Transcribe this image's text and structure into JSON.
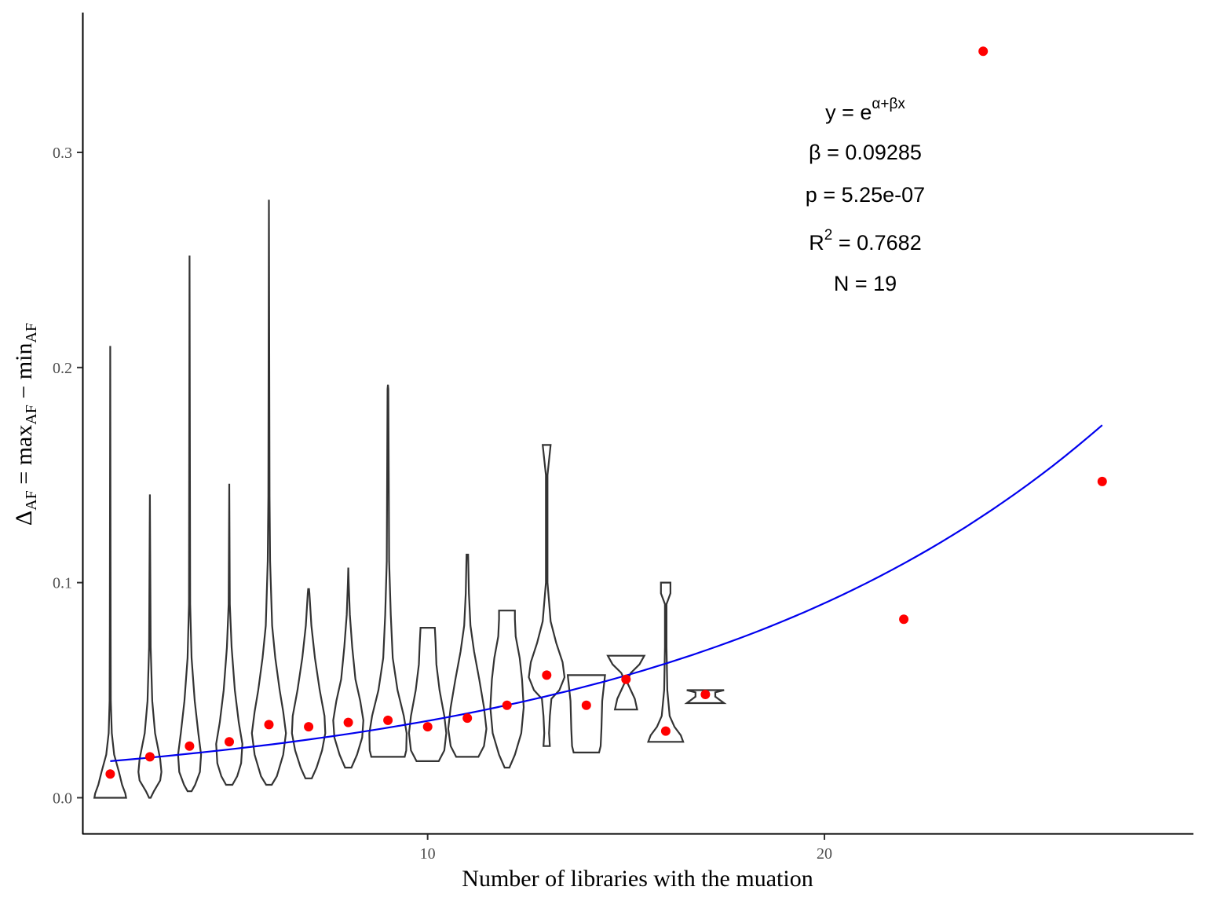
{
  "chart_data": {
    "type": "scatter",
    "xlabel": "Number of libraries with the muation",
    "ylabel": {
      "delta": "Δ",
      "sub1": "AF",
      "eq": " = max",
      "sub2": "AF",
      "minus": " − min",
      "sub3": "AF"
    },
    "xlim": [
      1.3,
      29.3
    ],
    "ylim": [
      -0.017,
      0.365
    ],
    "x_ticks": [
      {
        "value": 10,
        "label": "10"
      },
      {
        "value": 20,
        "label": "20"
      }
    ],
    "y_ticks": [
      {
        "value": 0.0,
        "label": "0.0"
      },
      {
        "value": 0.1,
        "label": "0.1"
      },
      {
        "value": 0.2,
        "label": "0.2"
      },
      {
        "value": 0.3,
        "label": "0.3"
      }
    ],
    "grid": false,
    "legend": "none",
    "colors": {
      "points": "#ff0000",
      "fit_line": "#0000ee",
      "violin": "#333333",
      "axis": "#000000"
    },
    "series": [
      {
        "kind": "points",
        "x": [
          2,
          3,
          4,
          5,
          6,
          7,
          8,
          9,
          10,
          11,
          12,
          13,
          14,
          15,
          16,
          17,
          22,
          24,
          27
        ],
        "y": [
          0.011,
          0.019,
          0.024,
          0.026,
          0.034,
          0.033,
          0.035,
          0.036,
          0.033,
          0.037,
          0.043,
          0.057,
          0.043,
          0.055,
          0.031,
          0.048,
          0.083,
          0.347,
          0.147
        ]
      },
      {
        "kind": "fit",
        "formula": "exp(alpha + beta*x)",
        "x_range": [
          2,
          27
        ],
        "y_at_start": 0.017,
        "beta": 0.09285
      }
    ],
    "violins": [
      {
        "x": 2,
        "profile": [
          [
            0.0,
            0.4
          ],
          [
            0.002,
            0.38
          ],
          [
            0.006,
            0.3
          ],
          [
            0.012,
            0.22
          ],
          [
            0.02,
            0.1
          ],
          [
            0.03,
            0.04
          ],
          [
            0.045,
            0.015
          ],
          [
            0.08,
            0.01
          ],
          [
            0.21,
            0.0
          ]
        ]
      },
      {
        "x": 3,
        "profile": [
          [
            0.0,
            0.02
          ],
          [
            0.003,
            0.1
          ],
          [
            0.008,
            0.26
          ],
          [
            0.012,
            0.29
          ],
          [
            0.018,
            0.26
          ],
          [
            0.03,
            0.13
          ],
          [
            0.045,
            0.06
          ],
          [
            0.07,
            0.02
          ],
          [
            0.141,
            0.0
          ]
        ]
      },
      {
        "x": 4,
        "profile": [
          [
            0.003,
            0.05
          ],
          [
            0.006,
            0.14
          ],
          [
            0.012,
            0.26
          ],
          [
            0.02,
            0.29
          ],
          [
            0.03,
            0.22
          ],
          [
            0.045,
            0.13
          ],
          [
            0.065,
            0.05
          ],
          [
            0.09,
            0.015
          ],
          [
            0.252,
            0.0
          ]
        ]
      },
      {
        "x": 5,
        "profile": [
          [
            0.006,
            0.08
          ],
          [
            0.01,
            0.2
          ],
          [
            0.016,
            0.3
          ],
          [
            0.025,
            0.33
          ],
          [
            0.035,
            0.24
          ],
          [
            0.05,
            0.14
          ],
          [
            0.07,
            0.06
          ],
          [
            0.09,
            0.015
          ],
          [
            0.146,
            0.0
          ]
        ]
      },
      {
        "x": 6,
        "profile": [
          [
            0.006,
            0.07
          ],
          [
            0.01,
            0.2
          ],
          [
            0.02,
            0.36
          ],
          [
            0.03,
            0.43
          ],
          [
            0.04,
            0.36
          ],
          [
            0.05,
            0.27
          ],
          [
            0.065,
            0.16
          ],
          [
            0.08,
            0.08
          ],
          [
            0.11,
            0.03
          ],
          [
            0.14,
            0.015
          ],
          [
            0.278,
            0.0
          ]
        ]
      },
      {
        "x": 7,
        "profile": [
          [
            0.009,
            0.08
          ],
          [
            0.014,
            0.2
          ],
          [
            0.022,
            0.34
          ],
          [
            0.03,
            0.42
          ],
          [
            0.038,
            0.4
          ],
          [
            0.05,
            0.28
          ],
          [
            0.065,
            0.16
          ],
          [
            0.08,
            0.07
          ],
          [
            0.095,
            0.02
          ],
          [
            0.097,
            0.01
          ]
        ]
      },
      {
        "x": 8,
        "profile": [
          [
            0.014,
            0.08
          ],
          [
            0.02,
            0.22
          ],
          [
            0.028,
            0.35
          ],
          [
            0.036,
            0.38
          ],
          [
            0.045,
            0.3
          ],
          [
            0.055,
            0.18
          ],
          [
            0.07,
            0.1
          ],
          [
            0.085,
            0.04
          ],
          [
            0.1,
            0.01
          ],
          [
            0.107,
            0.0
          ]
        ]
      },
      {
        "x": 9,
        "profile": [
          [
            0.019,
            0.42
          ],
          [
            0.022,
            0.46
          ],
          [
            0.03,
            0.47
          ],
          [
            0.038,
            0.4
          ],
          [
            0.05,
            0.24
          ],
          [
            0.065,
            0.12
          ],
          [
            0.085,
            0.07
          ],
          [
            0.11,
            0.03
          ],
          [
            0.15,
            0.02
          ],
          [
            0.19,
            0.01
          ],
          [
            0.192,
            0.0
          ]
        ]
      },
      {
        "x": 10,
        "profile": [
          [
            0.017,
            0.28
          ],
          [
            0.022,
            0.42
          ],
          [
            0.03,
            0.47
          ],
          [
            0.038,
            0.42
          ],
          [
            0.05,
            0.3
          ],
          [
            0.062,
            0.22
          ],
          [
            0.072,
            0.2
          ],
          [
            0.079,
            0.18
          ]
        ]
      },
      {
        "x": 11,
        "profile": [
          [
            0.019,
            0.28
          ],
          [
            0.024,
            0.42
          ],
          [
            0.032,
            0.48
          ],
          [
            0.042,
            0.42
          ],
          [
            0.055,
            0.3
          ],
          [
            0.068,
            0.17
          ],
          [
            0.08,
            0.08
          ],
          [
            0.095,
            0.04
          ],
          [
            0.113,
            0.02
          ]
        ]
      },
      {
        "x": 12,
        "profile": [
          [
            0.014,
            0.06
          ],
          [
            0.02,
            0.2
          ],
          [
            0.03,
            0.36
          ],
          [
            0.042,
            0.42
          ],
          [
            0.055,
            0.38
          ],
          [
            0.065,
            0.32
          ],
          [
            0.075,
            0.22
          ],
          [
            0.083,
            0.2
          ],
          [
            0.087,
            0.2
          ]
        ]
      },
      {
        "x": 13,
        "profile": [
          [
            0.024,
            0.08
          ],
          [
            0.03,
            0.06
          ],
          [
            0.038,
            0.08
          ],
          [
            0.046,
            0.12
          ],
          [
            0.05,
            0.32
          ],
          [
            0.056,
            0.45
          ],
          [
            0.063,
            0.4
          ],
          [
            0.072,
            0.24
          ],
          [
            0.082,
            0.1
          ],
          [
            0.1,
            0.02
          ],
          [
            0.15,
            0.02
          ],
          [
            0.164,
            0.1
          ]
        ]
      },
      {
        "x": 14,
        "profile": [
          [
            0.021,
            0.32
          ],
          [
            0.024,
            0.36
          ],
          [
            0.032,
            0.38
          ],
          [
            0.045,
            0.4
          ],
          [
            0.057,
            0.47
          ]
        ]
      },
      {
        "x": 15,
        "profile": [
          [
            0.041,
            0.28
          ],
          [
            0.046,
            0.22
          ],
          [
            0.05,
            0.12
          ],
          [
            0.054,
            0.02
          ],
          [
            0.058,
            0.12
          ],
          [
            0.062,
            0.34
          ],
          [
            0.066,
            0.46
          ]
        ]
      },
      {
        "x": 16,
        "profile": [
          [
            0.026,
            0.44
          ],
          [
            0.029,
            0.38
          ],
          [
            0.033,
            0.22
          ],
          [
            0.038,
            0.1
          ],
          [
            0.05,
            0.04
          ],
          [
            0.07,
            0.02
          ],
          [
            0.09,
            0.02
          ],
          [
            0.095,
            0.12
          ],
          [
            0.1,
            0.12
          ]
        ]
      },
      {
        "x": 17,
        "profile": [
          [
            0.044,
            0.47
          ],
          [
            0.047,
            0.25
          ],
          [
            0.049,
            0.25
          ],
          [
            0.05,
            0.47
          ]
        ]
      }
    ],
    "annotations": [
      {
        "base": "y = e",
        "sup": "α+βx"
      },
      {
        "text": "β = 0.09285"
      },
      {
        "text": "p = 5.25e-07"
      },
      {
        "base": "R",
        "sup": "2",
        "rest": " = 0.7682"
      },
      {
        "text": "N = 19"
      }
    ]
  }
}
